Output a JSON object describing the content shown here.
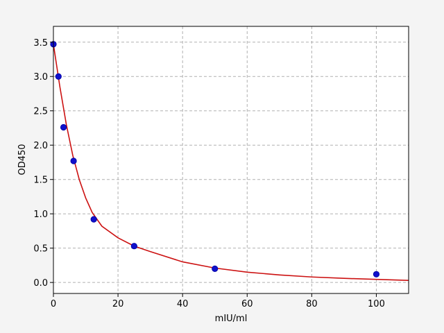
{
  "chart_data": {
    "type": "scatter",
    "xlabel": "mIU/ml",
    "ylabel": "OD450",
    "xlim": [
      0,
      110
    ],
    "ylim": [
      -0.16,
      3.73
    ],
    "xticks": [
      0,
      20,
      40,
      60,
      80,
      100
    ],
    "yticks": [
      {
        "value": 0,
        "label": "0.0"
      },
      {
        "value": 0.5,
        "label": "0.5"
      },
      {
        "value": 1,
        "label": "1.0"
      },
      {
        "value": 1.5,
        "label": "1.5"
      },
      {
        "value": 2,
        "label": "2.0"
      },
      {
        "value": 2.5,
        "label": "2.5"
      },
      {
        "value": 3,
        "label": "3.0"
      },
      {
        "value": 3.5,
        "label": "3.5"
      }
    ],
    "grid": true,
    "series": [
      {
        "style": "line",
        "color": "#cc1111",
        "x": [
          0,
          2,
          4,
          6,
          8,
          10,
          12,
          15,
          20,
          25,
          30,
          40,
          50,
          60,
          70,
          80,
          90,
          100,
          110
        ],
        "values": [
          3.47,
          2.85,
          2.3,
          1.85,
          1.5,
          1.23,
          1.02,
          0.82,
          0.65,
          0.53,
          0.45,
          0.3,
          0.21,
          0.15,
          0.11,
          0.08,
          0.06,
          0.045,
          0.03
        ]
      },
      {
        "style": "markers",
        "color": "#1010cc",
        "x": [
          0,
          1.56,
          3.125,
          6.25,
          12.5,
          25,
          50,
          100
        ],
        "values": [
          3.47,
          3.0,
          2.26,
          1.77,
          0.92,
          0.53,
          0.2,
          0.12
        ]
      }
    ]
  }
}
